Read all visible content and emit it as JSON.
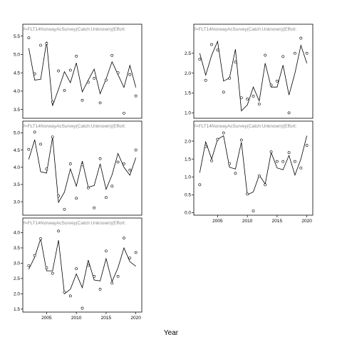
{
  "figure": {
    "xlabel": "Year",
    "strip_text": "f=FLT14NorwayAcSurvey(Catch:Unknown)(Effort:"
  },
  "chart_data": [
    {
      "type": "line",
      "panel": "row1-col1",
      "title": "f=FLT14NorwayAcSurvey(Catch:Unknown)(Effort:",
      "xlabel": "Year",
      "xlim": [
        2001,
        2021
      ],
      "ylim": [
        3.3,
        5.55
      ],
      "yticks": [
        3.5,
        4.0,
        4.5,
        5.0,
        5.5
      ],
      "xticks": [],
      "series": [
        {
          "role": "fitted",
          "x": [
            2002,
            2003,
            2004,
            2005,
            2006,
            2007,
            2008,
            2009,
            2010,
            2011,
            2012,
            2013,
            2014,
            2015,
            2016,
            2017,
            2018,
            2019,
            2020
          ],
          "y": [
            5.17,
            4.3,
            4.32,
            5.35,
            3.6,
            4.05,
            4.53,
            4.23,
            4.77,
            3.98,
            4.3,
            4.6,
            3.93,
            4.33,
            4.8,
            4.45,
            4.1,
            4.7,
            4.1
          ]
        },
        {
          "role": "observed",
          "x": [
            2002,
            2003,
            2004,
            2005,
            2006,
            2007,
            2008,
            2009,
            2010,
            2011,
            2012,
            2013,
            2014,
            2015,
            2016,
            2017,
            2018,
            2019,
            2020
          ],
          "y": [
            5.45,
            4.47,
            5.25,
            5.3,
            3.7,
            4.55,
            4.02,
            4.57,
            4.95,
            3.75,
            4.24,
            4.35,
            3.68,
            4.3,
            4.97,
            4.5,
            3.4,
            4.45,
            3.87
          ]
        }
      ]
    },
    {
      "type": "line",
      "panel": "row2-col1",
      "title": "f=FLT14NorwayAcSurvey(Catch:Unknown)(Effort:",
      "xlabel": "Year",
      "xlim": [
        2001,
        2021
      ],
      "ylim": [
        2.65,
        5.05
      ],
      "yticks": [
        3.0,
        3.5,
        4.0,
        4.5,
        5.0
      ],
      "xticks": [],
      "series": [
        {
          "role": "fitted",
          "x": [
            2002,
            2003,
            2004,
            2005,
            2006,
            2007,
            2008,
            2009,
            2010,
            2011,
            2012,
            2013,
            2014,
            2015,
            2016,
            2017,
            2018,
            2019,
            2020
          ],
          "y": [
            4.23,
            4.8,
            3.87,
            3.83,
            4.87,
            2.98,
            3.28,
            3.95,
            3.45,
            4.18,
            3.42,
            3.47,
            4.1,
            3.36,
            3.78,
            4.4,
            4.0,
            3.77,
            4.28
          ]
        },
        {
          "role": "observed",
          "x": [
            2002,
            2003,
            2004,
            2005,
            2006,
            2007,
            2008,
            2009,
            2010,
            2011,
            2012,
            2013,
            2014,
            2015,
            2016,
            2017,
            2018,
            2019,
            2020
          ],
          "y": [
            4.52,
            5.02,
            4.67,
            3.95,
            4.88,
            3.17,
            2.78,
            4.1,
            3.1,
            4.07,
            3.4,
            2.82,
            4.25,
            3.12,
            3.45,
            4.15,
            4.1,
            3.92,
            4.5
          ]
        }
      ]
    },
    {
      "type": "line",
      "panel": "row3-col1",
      "title": "f=FLT14NorwayAcSurvey(Catch:Unknown)(Effort:",
      "xlabel": "Year",
      "xlim": [
        2001,
        2021
      ],
      "ylim": [
        1.45,
        4.15
      ],
      "yticks": [
        1.5,
        2.0,
        2.5,
        3.0,
        3.5,
        4.0
      ],
      "xticks": [
        2005,
        2010,
        2015,
        2020
      ],
      "series": [
        {
          "role": "fitted",
          "x": [
            2002,
            2003,
            2004,
            2005,
            2006,
            2007,
            2008,
            2009,
            2010,
            2011,
            2012,
            2013,
            2014,
            2015,
            2016,
            2017,
            2018,
            2019,
            2020
          ],
          "y": [
            2.8,
            3.2,
            3.8,
            2.75,
            2.75,
            3.75,
            2.0,
            2.15,
            2.65,
            2.2,
            3.1,
            2.45,
            2.42,
            3.15,
            2.4,
            2.85,
            3.5,
            3.05,
            2.9
          ]
        },
        {
          "role": "observed",
          "x": [
            2002,
            2003,
            2004,
            2005,
            2006,
            2007,
            2008,
            2009,
            2010,
            2011,
            2012,
            2013,
            2014,
            2015,
            2016,
            2017,
            2018,
            2019,
            2020
          ],
          "y": [
            2.92,
            3.25,
            3.8,
            2.85,
            2.67,
            4.05,
            2.05,
            1.93,
            2.82,
            1.53,
            2.93,
            2.57,
            2.15,
            3.4,
            2.35,
            2.57,
            3.82,
            3.17,
            3.35
          ]
        }
      ]
    },
    {
      "type": "line",
      "panel": "row1-col2",
      "title": "f=FLT14NorwayAcSurvey(Catch:Unknown)(Effort:",
      "xlabel": "Year",
      "xlim": [
        2001,
        2021
      ],
      "ylim": [
        0.9,
        2.98
      ],
      "yticks": [
        1.0,
        1.5,
        2.0,
        2.5
      ],
      "xticks": [],
      "series": [
        {
          "role": "fitted",
          "x": [
            2002,
            2003,
            2004,
            2005,
            2006,
            2007,
            2008,
            2009,
            2010,
            2011,
            2012,
            2013,
            2014,
            2015,
            2016,
            2017,
            2018,
            2019,
            2020
          ],
          "y": [
            2.5,
            1.95,
            2.45,
            2.8,
            1.8,
            1.88,
            2.6,
            1.05,
            1.2,
            1.65,
            1.3,
            2.25,
            1.65,
            1.65,
            2.2,
            1.45,
            2.0,
            2.7,
            2.25
          ]
        },
        {
          "role": "observed",
          "x": [
            2002,
            2003,
            2004,
            2005,
            2006,
            2007,
            2008,
            2009,
            2010,
            2011,
            2012,
            2013,
            2014,
            2015,
            2016,
            2017,
            2018,
            2019,
            2020
          ],
          "y": [
            2.35,
            1.82,
            2.72,
            2.58,
            1.52,
            1.87,
            2.28,
            1.38,
            1.35,
            1.42,
            1.22,
            2.45,
            1.7,
            1.8,
            2.42,
            1.0,
            2.5,
            2.88,
            2.5
          ]
        }
      ]
    },
    {
      "type": "line",
      "panel": "row2-col2",
      "title": "f=FLT14NorwayAcSurvey(Catch:Unknown)(Effort:",
      "xlabel": "Year",
      "xlim": [
        2001,
        2021
      ],
      "ylim": [
        -0.03,
        2.28
      ],
      "yticks": [
        0.0,
        0.5,
        1.0,
        1.5,
        2.0
      ],
      "xticks": [
        2005,
        2010,
        2015,
        2020
      ],
      "series": [
        {
          "role": "fitted",
          "x": [
            2002,
            2003,
            2004,
            2005,
            2006,
            2007,
            2008,
            2009,
            2010,
            2011,
            2012,
            2013,
            2014,
            2015,
            2016,
            2017,
            2018,
            2019,
            2020
          ],
          "y": [
            1.12,
            1.98,
            1.5,
            2.05,
            2.15,
            1.27,
            1.22,
            1.97,
            0.5,
            0.58,
            1.05,
            0.8,
            1.68,
            1.25,
            1.2,
            1.6,
            1.05,
            1.5,
            2.15
          ]
        },
        {
          "role": "observed",
          "x": [
            2002,
            2003,
            2004,
            2005,
            2006,
            2007,
            2008,
            2009,
            2010,
            2011,
            2012,
            2013,
            2014,
            2015,
            2016,
            2017,
            2018,
            2019,
            2020
          ],
          "y": [
            0.78,
            1.85,
            1.45,
            2.05,
            2.23,
            1.37,
            1.1,
            2.03,
            0.52,
            0.05,
            1.03,
            0.78,
            1.7,
            1.43,
            1.43,
            1.68,
            1.43,
            1.25,
            1.88
          ]
        }
      ]
    }
  ]
}
